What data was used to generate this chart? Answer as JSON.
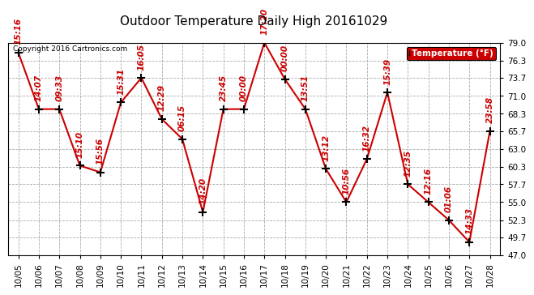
{
  "title": "Outdoor Temperature Daily High 20161029",
  "copyright_text": "Copyright 2016 Cartronics.com",
  "legend_label": "Temperature (°F)",
  "dates": [
    "10/05",
    "10/06",
    "10/07",
    "10/08",
    "10/09",
    "10/10",
    "10/11",
    "10/12",
    "10/13",
    "10/14",
    "10/15",
    "10/16",
    "10/17",
    "10/18",
    "10/19",
    "10/20",
    "10/21",
    "10/22",
    "10/23",
    "10/24",
    "10/25",
    "10/26",
    "10/27",
    "10/28"
  ],
  "temperatures": [
    77.5,
    69.0,
    69.0,
    60.5,
    59.5,
    70.0,
    73.7,
    67.5,
    64.5,
    53.5,
    69.0,
    69.0,
    79.0,
    73.5,
    69.0,
    60.0,
    55.0,
    61.5,
    71.5,
    57.7,
    55.0,
    52.3,
    49.0,
    65.7
  ],
  "time_labels": [
    "15:16",
    "14:07",
    "09:33",
    "15:10",
    "15:56",
    "15:31",
    "16:05",
    "12:29",
    "06:15",
    "14:20",
    "23:45",
    "00:00",
    "17:20",
    "00:00",
    "13:51",
    "13:12",
    "10:56",
    "16:32",
    "15:39",
    "12:35",
    "12:16",
    "01:06",
    "14:33",
    "23:58"
  ],
  "line_color": "#CC0000",
  "marker_color": "#000000",
  "background_color": "#ffffff",
  "grid_color": "#AAAAAA",
  "legend_bg": "#CC0000",
  "legend_text_color": "#ffffff",
  "ylim": [
    47.0,
    79.0
  ],
  "yticks": [
    47.0,
    49.7,
    52.3,
    55.0,
    57.7,
    60.3,
    63.0,
    65.7,
    68.3,
    71.0,
    73.7,
    76.3,
    79.0
  ],
  "title_fontsize": 11,
  "tick_fontsize": 7.5,
  "annotation_fontsize": 7.5,
  "copyright_fontsize": 6.5
}
